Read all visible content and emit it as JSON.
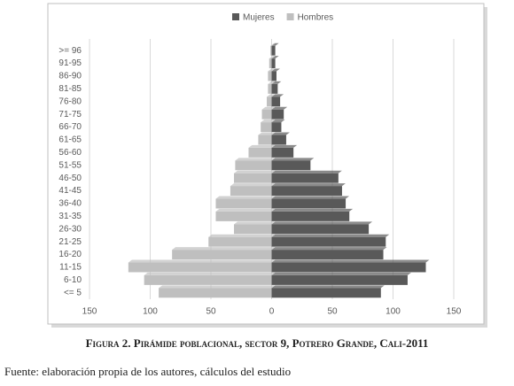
{
  "chart_data": {
    "type": "bar",
    "orientation": "horizontal",
    "categories": [
      "<= 5",
      "6-10",
      "11-15",
      "16-20",
      "21-25",
      "26-30",
      "31-35",
      "36-40",
      "41-45",
      "46-50",
      "51-55",
      "56-60",
      "61-65",
      "66-70",
      "71-75",
      "76-80",
      "81-85",
      "86-90",
      "91-95",
      ">= 96"
    ],
    "series": [
      {
        "name": "Mujeres",
        "color": "#595959",
        "values": [
          90,
          112,
          127,
          92,
          94,
          80,
          64,
          61,
          58,
          55,
          32,
          18,
          12,
          8,
          10,
          7,
          5,
          4,
          3,
          3
        ]
      },
      {
        "name": "Hombres",
        "color": "#bfbfbf",
        "values": [
          -93,
          -105,
          -118,
          -82,
          -52,
          -31,
          -46,
          -46,
          -34,
          -31,
          -30,
          -19,
          -11,
          -9,
          -8,
          -4,
          -3,
          -3,
          -2,
          -1
        ]
      }
    ],
    "xlim": [
      -150,
      150
    ],
    "xticks": [
      {
        "value": -150,
        "label": "150"
      },
      {
        "value": -100,
        "label": "100"
      },
      {
        "value": -50,
        "label": "50"
      },
      0,
      50,
      100,
      150
    ],
    "grid": true,
    "legend": "top"
  },
  "caption": "Figura 2. Pirámide poblacional, sector 9, Potrero Grande, Cali-2011",
  "source": "Fuente: elaboración propia de los autores, cálculos del estudio"
}
